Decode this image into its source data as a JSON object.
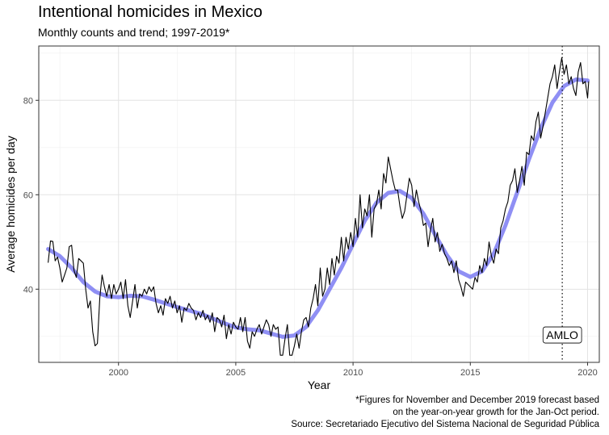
{
  "chart_data": {
    "type": "line",
    "title": "Intentional homicides in Mexico",
    "subtitle": "Monthly counts and trend; 1997-2019*",
    "xlabel": "Year",
    "ylabel": "Average homicides per day",
    "xlim": [
      1996.6,
      2020.5
    ],
    "ylim": [
      24.5,
      91.5
    ],
    "x_ticks": [
      2000,
      2005,
      2010,
      2015,
      2020
    ],
    "y_ticks": [
      40,
      60,
      80
    ],
    "grid": true,
    "legend": "none",
    "series": [
      {
        "name": "Monthly average homicides per day",
        "color": "#000000",
        "points": [
          [
            1997.0,
            45.6
          ],
          [
            1997.1,
            50.2
          ],
          [
            1997.2,
            50.1
          ],
          [
            1997.3,
            46.0
          ],
          [
            1997.4,
            46.8
          ],
          [
            1997.5,
            44.5
          ],
          [
            1997.6,
            41.5
          ],
          [
            1997.7,
            43.0
          ],
          [
            1997.8,
            44.5
          ],
          [
            1997.9,
            49.0
          ],
          [
            1998.0,
            49.3
          ],
          [
            1998.1,
            44.0
          ],
          [
            1998.2,
            42.5
          ],
          [
            1998.3,
            46.5
          ],
          [
            1998.4,
            46.0
          ],
          [
            1998.5,
            45.5
          ],
          [
            1998.6,
            40.0
          ],
          [
            1998.7,
            36.0
          ],
          [
            1998.8,
            37.5
          ],
          [
            1998.9,
            31.0
          ],
          [
            1999.0,
            28.0
          ],
          [
            1999.1,
            28.5
          ],
          [
            1999.2,
            38.0
          ],
          [
            1999.3,
            43.0
          ],
          [
            1999.4,
            40.5
          ],
          [
            1999.5,
            38.5
          ],
          [
            1999.6,
            41.0
          ],
          [
            1999.7,
            38.0
          ],
          [
            1999.8,
            41.0
          ],
          [
            1999.9,
            39.0
          ],
          [
            2000.0,
            40.0
          ],
          [
            2000.1,
            41.5
          ],
          [
            2000.2,
            38.0
          ],
          [
            2000.3,
            42.0
          ],
          [
            2000.4,
            36.5
          ],
          [
            2000.5,
            34.0
          ],
          [
            2000.6,
            37.5
          ],
          [
            2000.7,
            41.0
          ],
          [
            2000.8,
            36.0
          ],
          [
            2000.9,
            39.0
          ],
          [
            2001.0,
            38.5
          ],
          [
            2001.1,
            40.0
          ],
          [
            2001.2,
            39.0
          ],
          [
            2001.3,
            40.5
          ],
          [
            2001.4,
            39.5
          ],
          [
            2001.5,
            40.5
          ],
          [
            2001.6,
            37.0
          ],
          [
            2001.7,
            35.0
          ],
          [
            2001.8,
            36.5
          ],
          [
            2001.9,
            34.5
          ],
          [
            2002.0,
            38.0
          ],
          [
            2002.1,
            37.0
          ],
          [
            2002.2,
            38.5
          ],
          [
            2002.3,
            36.0
          ],
          [
            2002.4,
            37.5
          ],
          [
            2002.5,
            35.0
          ],
          [
            2002.6,
            36.5
          ],
          [
            2002.7,
            33.0
          ],
          [
            2002.8,
            36.0
          ],
          [
            2002.9,
            35.5
          ],
          [
            2003.0,
            37.0
          ],
          [
            2003.1,
            36.0
          ],
          [
            2003.2,
            35.5
          ],
          [
            2003.3,
            33.5
          ],
          [
            2003.4,
            35.0
          ],
          [
            2003.5,
            34.0
          ],
          [
            2003.6,
            35.5
          ],
          [
            2003.7,
            33.5
          ],
          [
            2003.8,
            34.5
          ],
          [
            2003.9,
            33.0
          ],
          [
            2004.0,
            35.0
          ],
          [
            2004.1,
            31.0
          ],
          [
            2004.2,
            34.0
          ],
          [
            2004.3,
            33.5
          ],
          [
            2004.4,
            32.0
          ],
          [
            2004.5,
            34.5
          ],
          [
            2004.6,
            29.5
          ],
          [
            2004.7,
            32.5
          ],
          [
            2004.8,
            30.5
          ],
          [
            2004.9,
            33.0
          ],
          [
            2005.0,
            32.0
          ],
          [
            2005.1,
            31.5
          ],
          [
            2005.2,
            34.0
          ],
          [
            2005.3,
            31.0
          ],
          [
            2005.4,
            34.0
          ],
          [
            2005.5,
            29.0
          ],
          [
            2005.6,
            27.5
          ],
          [
            2005.7,
            31.0
          ],
          [
            2005.8,
            30.0
          ],
          [
            2005.9,
            31.5
          ],
          [
            2006.0,
            32.5
          ],
          [
            2006.1,
            30.5
          ],
          [
            2006.2,
            32.0
          ],
          [
            2006.3,
            33.5
          ],
          [
            2006.4,
            32.5
          ],
          [
            2006.5,
            30.0
          ],
          [
            2006.6,
            32.5
          ],
          [
            2006.7,
            31.5
          ],
          [
            2006.8,
            32.0
          ],
          [
            2006.9,
            26.0
          ],
          [
            2007.0,
            26.0
          ],
          [
            2007.1,
            29.5
          ],
          [
            2007.2,
            32.5
          ],
          [
            2007.3,
            26.0
          ],
          [
            2007.4,
            26.0
          ],
          [
            2007.5,
            28.0
          ],
          [
            2007.6,
            30.5
          ],
          [
            2007.7,
            27.5
          ],
          [
            2007.8,
            31.0
          ],
          [
            2007.9,
            33.5
          ],
          [
            2008.0,
            34.0
          ],
          [
            2008.1,
            32.0
          ],
          [
            2008.2,
            36.0
          ],
          [
            2008.3,
            38.0
          ],
          [
            2008.4,
            41.0
          ],
          [
            2008.5,
            36.5
          ],
          [
            2008.6,
            44.5
          ],
          [
            2008.7,
            38.5
          ],
          [
            2008.8,
            40.0
          ],
          [
            2008.9,
            44.5
          ],
          [
            2009.0,
            41.0
          ],
          [
            2009.1,
            46.5
          ],
          [
            2009.2,
            43.0
          ],
          [
            2009.3,
            47.0
          ],
          [
            2009.4,
            45.5
          ],
          [
            2009.5,
            51.0
          ],
          [
            2009.6,
            46.0
          ],
          [
            2009.7,
            51.0
          ],
          [
            2009.8,
            48.5
          ],
          [
            2009.9,
            52.0
          ],
          [
            2010.0,
            49.0
          ],
          [
            2010.1,
            55.0
          ],
          [
            2010.2,
            51.0
          ],
          [
            2010.3,
            60.0
          ],
          [
            2010.4,
            53.0
          ],
          [
            2010.5,
            57.0
          ],
          [
            2010.6,
            55.5
          ],
          [
            2010.7,
            60.0
          ],
          [
            2010.8,
            51.0
          ],
          [
            2010.9,
            57.0
          ],
          [
            2011.0,
            58.0
          ],
          [
            2011.1,
            61.0
          ],
          [
            2011.2,
            57.0
          ],
          [
            2011.3,
            64.5
          ],
          [
            2011.4,
            62.5
          ],
          [
            2011.5,
            68.0
          ],
          [
            2011.6,
            65.5
          ],
          [
            2011.7,
            63.0
          ],
          [
            2011.8,
            61.0
          ],
          [
            2011.9,
            61.0
          ],
          [
            2012.0,
            57.5
          ],
          [
            2012.1,
            55.0
          ],
          [
            2012.2,
            56.5
          ],
          [
            2012.3,
            60.0
          ],
          [
            2012.4,
            63.5
          ],
          [
            2012.5,
            62.0
          ],
          [
            2012.6,
            57.5
          ],
          [
            2012.7,
            61.0
          ],
          [
            2012.8,
            58.5
          ],
          [
            2012.9,
            56.5
          ],
          [
            2013.0,
            53.5
          ],
          [
            2013.1,
            54.0
          ],
          [
            2013.2,
            49.0
          ],
          [
            2013.3,
            52.5
          ],
          [
            2013.4,
            55.0
          ],
          [
            2013.5,
            50.0
          ],
          [
            2013.6,
            52.0
          ],
          [
            2013.7,
            48.0
          ],
          [
            2013.8,
            49.5
          ],
          [
            2013.9,
            47.5
          ],
          [
            2014.0,
            46.5
          ],
          [
            2014.1,
            45.0
          ],
          [
            2014.2,
            46.0
          ],
          [
            2014.3,
            43.5
          ],
          [
            2014.4,
            46.0
          ],
          [
            2014.5,
            42.0
          ],
          [
            2014.6,
            40.5
          ],
          [
            2014.7,
            38.5
          ],
          [
            2014.8,
            41.5
          ],
          [
            2014.9,
            41.0
          ],
          [
            2015.0,
            40.5
          ],
          [
            2015.1,
            40.0
          ],
          [
            2015.2,
            42.5
          ],
          [
            2015.3,
            41.5
          ],
          [
            2015.4,
            45.0
          ],
          [
            2015.5,
            43.5
          ],
          [
            2015.6,
            46.5
          ],
          [
            2015.7,
            45.0
          ],
          [
            2015.8,
            50.0
          ],
          [
            2015.9,
            47.0
          ],
          [
            2016.0,
            45.5
          ],
          [
            2016.1,
            48.5
          ],
          [
            2016.2,
            47.5
          ],
          [
            2016.3,
            53.0
          ],
          [
            2016.4,
            54.5
          ],
          [
            2016.5,
            57.0
          ],
          [
            2016.6,
            58.5
          ],
          [
            2016.7,
            62.0
          ],
          [
            2016.8,
            63.0
          ],
          [
            2016.9,
            65.5
          ],
          [
            2017.0,
            60.5
          ],
          [
            2017.1,
            63.0
          ],
          [
            2017.2,
            66.0
          ],
          [
            2017.3,
            62.0
          ],
          [
            2017.4,
            69.0
          ],
          [
            2017.5,
            68.5
          ],
          [
            2017.6,
            72.5
          ],
          [
            2017.7,
            71.5
          ],
          [
            2017.8,
            75.5
          ],
          [
            2017.9,
            77.5
          ],
          [
            2018.0,
            72.0
          ],
          [
            2018.1,
            74.5
          ],
          [
            2018.2,
            77.5
          ],
          [
            2018.3,
            80.5
          ],
          [
            2018.4,
            83.5
          ],
          [
            2018.5,
            85.0
          ],
          [
            2018.6,
            87.5
          ],
          [
            2018.7,
            82.5
          ],
          [
            2018.8,
            86.0
          ],
          [
            2018.9,
            89.0
          ],
          [
            2019.0,
            85.5
          ],
          [
            2019.1,
            87.5
          ],
          [
            2019.2,
            83.5
          ],
          [
            2019.3,
            85.0
          ],
          [
            2019.4,
            82.5
          ],
          [
            2019.5,
            81.0
          ],
          [
            2019.6,
            86.0
          ],
          [
            2019.7,
            88.0
          ],
          [
            2019.8,
            83.5
          ],
          [
            2019.9,
            84.0
          ],
          [
            2020.0,
            80.5
          ],
          [
            2020.05,
            84.0
          ]
        ]
      },
      {
        "name": "Trend",
        "color": "#7b7bf2",
        "points": [
          [
            1997.0,
            48.5
          ],
          [
            1997.5,
            47.0
          ],
          [
            1998.0,
            44.5
          ],
          [
            1998.5,
            41.5
          ],
          [
            1999.0,
            39.5
          ],
          [
            1999.5,
            38.5
          ],
          [
            2000.0,
            38.3
          ],
          [
            2000.5,
            38.6
          ],
          [
            2001.0,
            38.5
          ],
          [
            2001.5,
            37.8
          ],
          [
            2002.0,
            37.0
          ],
          [
            2002.5,
            36.2
          ],
          [
            2003.0,
            35.5
          ],
          [
            2003.5,
            34.8
          ],
          [
            2004.0,
            33.8
          ],
          [
            2004.5,
            32.8
          ],
          [
            2005.0,
            31.9
          ],
          [
            2005.5,
            31.5
          ],
          [
            2006.0,
            31.3
          ],
          [
            2006.5,
            30.6
          ],
          [
            2007.0,
            29.9
          ],
          [
            2007.5,
            30.2
          ],
          [
            2008.0,
            32.0
          ],
          [
            2008.5,
            35.5
          ],
          [
            2009.0,
            40.0
          ],
          [
            2009.5,
            44.5
          ],
          [
            2010.0,
            49.5
          ],
          [
            2010.5,
            54.5
          ],
          [
            2011.0,
            58.3
          ],
          [
            2011.5,
            60.4
          ],
          [
            2012.0,
            60.8
          ],
          [
            2012.5,
            59.3
          ],
          [
            2013.0,
            56.0
          ],
          [
            2013.5,
            51.5
          ],
          [
            2014.0,
            47.2
          ],
          [
            2014.5,
            43.8
          ],
          [
            2015.0,
            42.6
          ],
          [
            2015.5,
            43.8
          ],
          [
            2016.0,
            47.5
          ],
          [
            2016.5,
            53.5
          ],
          [
            2017.0,
            60.5
          ],
          [
            2017.5,
            67.5
          ],
          [
            2018.0,
            74.0
          ],
          [
            2018.5,
            79.5
          ],
          [
            2019.0,
            83.0
          ],
          [
            2019.5,
            84.4
          ],
          [
            2020.0,
            84.2
          ]
        ]
      }
    ],
    "annotations": [
      {
        "x": 2018.92,
        "type": "vline",
        "style": "dotted",
        "label": "AMLO",
        "label_y": 30.3
      }
    ],
    "caption": [
      "*Figures for November and December 2019 forecast based",
      "on the year-on-year growth for the Jan-Oct period.",
      "Source: Secretariado Ejecutivo del Sistema Nacional de Seguridad Pública"
    ]
  }
}
